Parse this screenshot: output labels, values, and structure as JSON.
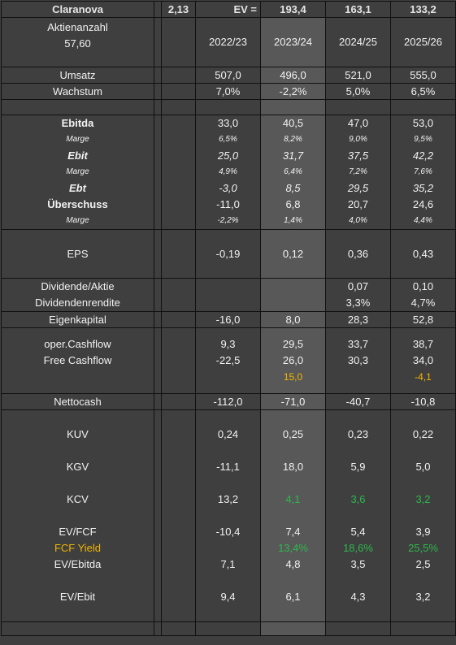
{
  "header": {
    "company": "Claranova",
    "price": "2,13",
    "ev_label": "EV =",
    "ev_values": [
      "193,4",
      "163,1",
      "133,2"
    ]
  },
  "years": [
    "2022/23",
    "2023/24",
    "2024/25",
    "2025/26"
  ],
  "shares": {
    "label": "Aktienanzahl",
    "value": "57,60"
  },
  "umsatz": {
    "label": "Umsatz",
    "values": [
      "507,0",
      "496,0",
      "521,0",
      "555,0"
    ]
  },
  "wachstum": {
    "label": "Wachstum",
    "values": [
      "7,0%",
      "-2,2%",
      "5,0%",
      "6,5%"
    ]
  },
  "profit": [
    {
      "label": "Ebitda",
      "values": [
        "33,0",
        "40,5",
        "47,0",
        "53,0"
      ]
    },
    {
      "label": "Marge",
      "values": [
        "6,5%",
        "8,2%",
        "9,0%",
        "9,5%"
      ]
    },
    {
      "label": "Ebit",
      "values": [
        "25,0",
        "31,7",
        "37,5",
        "42,2"
      ]
    },
    {
      "label": "Marge",
      "values": [
        "4,9%",
        "6,4%",
        "7,2%",
        "7,6%"
      ]
    },
    {
      "label": "Ebt",
      "values": [
        "-3,0",
        "8,5",
        "29,5",
        "35,2"
      ]
    },
    {
      "label": "Überschuss",
      "values": [
        "-11,0",
        "6,8",
        "20,7",
        "24,6"
      ]
    },
    {
      "label": "Marge",
      "values": [
        "-2,2%",
        "1,4%",
        "4,0%",
        "4,4%"
      ]
    }
  ],
  "eps": {
    "label": "EPS",
    "values": [
      "-0,19",
      "0,12",
      "0,36",
      "0,43"
    ]
  },
  "dividend": {
    "label": "Dividende/Aktie",
    "values": [
      "",
      "",
      "0,07",
      "0,10"
    ],
    "yield_label": "Dividendenrendite",
    "yield_values": [
      "",
      "",
      "3,3%",
      "4,7%"
    ]
  },
  "eigenkapital": {
    "label": "Eigenkapital",
    "values": [
      "-16,0",
      "8,0",
      "28,3",
      "52,8"
    ]
  },
  "cashflow": {
    "oper_label": "oper.Cashflow",
    "oper_values": [
      "9,3",
      "29,5",
      "33,7",
      "38,7"
    ],
    "free_label": "Free Cashflow",
    "free_values": [
      "-22,5",
      "26,0",
      "30,3",
      "34,0"
    ],
    "extra_values": [
      "",
      "15,0",
      "",
      "-4,1"
    ]
  },
  "nettocash": {
    "label": "Nettocash",
    "values": [
      "-112,0",
      "-71,0",
      "-40,7",
      "-10,8"
    ]
  },
  "valuation": {
    "kuv": {
      "label": "KUV",
      "values": [
        "0,24",
        "0,25",
        "0,23",
        "0,22"
      ]
    },
    "kgv": {
      "label": "KGV",
      "values": [
        "-11,1",
        "18,0",
        "5,9",
        "5,0"
      ]
    },
    "kcv": {
      "label": "KCV",
      "values": [
        "13,2",
        "4,1",
        "3,6",
        "3,2"
      ]
    },
    "evfcf": {
      "label": "EV/FCF",
      "values": [
        "-10,4",
        "7,4",
        "5,4",
        "3,9"
      ]
    },
    "fcfyield": {
      "label": "FCF Yield",
      "values": [
        "",
        "13,4%",
        "18,6%",
        "25,5%"
      ]
    },
    "evebitda": {
      "label": "EV/Ebitda",
      "values": [
        "7,1",
        "4,8",
        "3,5",
        "2,5"
      ]
    },
    "evebit": {
      "label": "EV/Ebit",
      "values": [
        "9,4",
        "6,1",
        "4,3",
        "3,2"
      ]
    }
  },
  "colors": {
    "highlight_col": "#585858",
    "yellow": "#f0b400",
    "green": "#2db84d"
  }
}
